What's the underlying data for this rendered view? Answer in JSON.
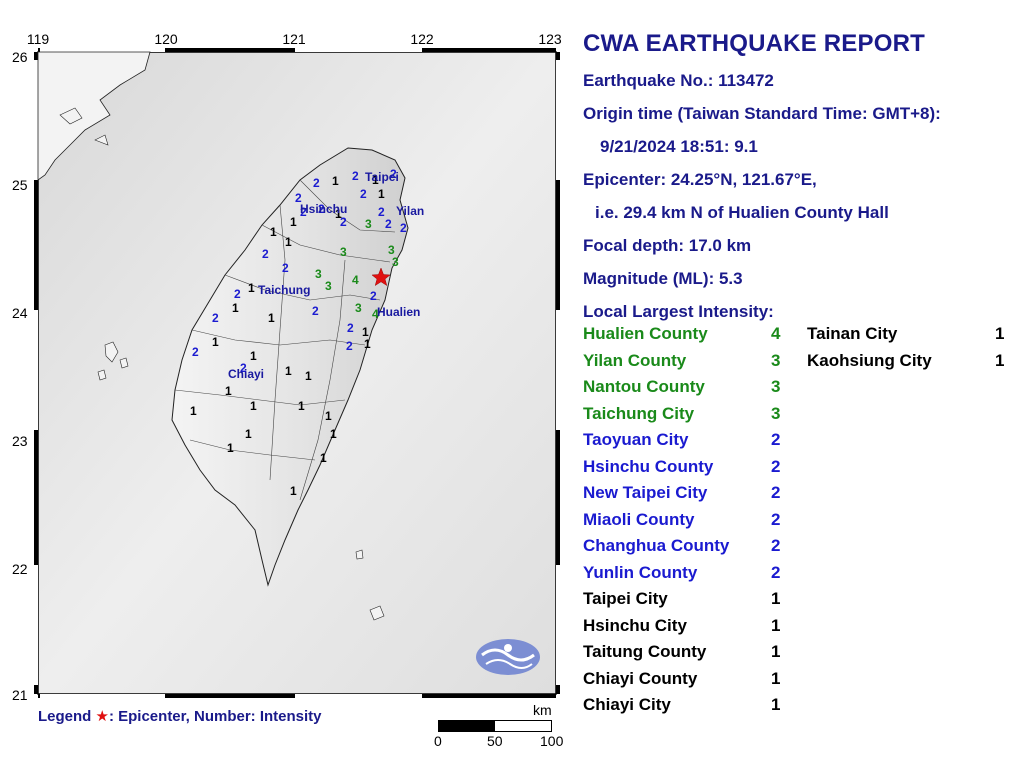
{
  "map": {
    "lon_ticks": [
      "119",
      "120",
      "121",
      "122",
      "123"
    ],
    "lat_ticks": [
      "26",
      "25",
      "24",
      "23",
      "22",
      "21"
    ],
    "cities": [
      {
        "name": "Taipei"
      },
      {
        "name": "Hsinchu"
      },
      {
        "name": "Yilan"
      },
      {
        "name": "Taichung"
      },
      {
        "name": "Hualien"
      },
      {
        "name": "Chiayi"
      }
    ],
    "intensity_marks": [
      {
        "v": "2",
        "c": "#1a1ad0"
      },
      {
        "v": "1",
        "c": "#000"
      },
      {
        "v": "2",
        "c": "#1a1ad0"
      },
      {
        "v": "1",
        "c": "#000"
      },
      {
        "v": "2",
        "c": "#1a1ad0"
      },
      {
        "v": "2",
        "c": "#1a1ad0"
      },
      {
        "v": "1",
        "c": "#000"
      },
      {
        "v": "2",
        "c": "#1a1ad0"
      },
      {
        "v": "2",
        "c": "#1a1ad0"
      },
      {
        "v": "2",
        "c": "#1a1ad0"
      },
      {
        "v": "1",
        "c": "#000"
      },
      {
        "v": "2",
        "c": "#1a1ad0"
      },
      {
        "v": "3",
        "c": "#1a8a1a"
      },
      {
        "v": "2",
        "c": "#1a1ad0"
      },
      {
        "v": "2",
        "c": "#1a1ad0"
      },
      {
        "v": "2",
        "c": "#1a1ad0"
      },
      {
        "v": "1",
        "c": "#000"
      },
      {
        "v": "1",
        "c": "#000"
      },
      {
        "v": "3",
        "c": "#1a8a1a"
      },
      {
        "v": "3",
        "c": "#1a8a1a"
      },
      {
        "v": "1",
        "c": "#000"
      },
      {
        "v": "2",
        "c": "#1a1ad0"
      },
      {
        "v": "3",
        "c": "#1a8a1a"
      },
      {
        "v": "3",
        "c": "#1a8a1a"
      },
      {
        "v": "4",
        "c": "#1a8a1a"
      },
      {
        "v": "3",
        "c": "#1a8a1a"
      },
      {
        "v": "2",
        "c": "#1a1ad0"
      },
      {
        "v": "1",
        "c": "#000"
      },
      {
        "v": "2",
        "c": "#1a1ad0"
      },
      {
        "v": "4",
        "c": "#1a8a1a"
      },
      {
        "v": "2",
        "c": "#1a1ad0"
      },
      {
        "v": "2",
        "c": "#1a1ad0"
      },
      {
        "v": "1",
        "c": "#000"
      },
      {
        "v": "3",
        "c": "#1a8a1a"
      },
      {
        "v": "2",
        "c": "#1a1ad0"
      },
      {
        "v": "1",
        "c": "#000"
      },
      {
        "v": "2",
        "c": "#1a1ad0"
      },
      {
        "v": "2",
        "c": "#1a1ad0"
      },
      {
        "v": "1",
        "c": "#000"
      },
      {
        "v": "1",
        "c": "#000"
      },
      {
        "v": "2",
        "c": "#1a1ad0"
      },
      {
        "v": "1",
        "c": "#000"
      },
      {
        "v": "1",
        "c": "#000"
      },
      {
        "v": "1",
        "c": "#000"
      },
      {
        "v": "1",
        "c": "#000"
      },
      {
        "v": "2",
        "c": "#1a1ad0"
      },
      {
        "v": "1",
        "c": "#000"
      },
      {
        "v": "1",
        "c": "#000"
      },
      {
        "v": "1",
        "c": "#000"
      },
      {
        "v": "1",
        "c": "#000"
      },
      {
        "v": "1",
        "c": "#000"
      },
      {
        "v": "1",
        "c": "#000"
      },
      {
        "v": "1",
        "c": "#000"
      },
      {
        "v": "1",
        "c": "#000"
      },
      {
        "v": "1",
        "c": "#000"
      },
      {
        "v": "1",
        "c": "#000"
      }
    ],
    "epicenter_color": "#e01010"
  },
  "legend": {
    "label": "Legend",
    "text": ": Epicenter, Number: Intensity"
  },
  "scale": {
    "unit": "km",
    "labels": [
      "0",
      "50",
      "100"
    ]
  },
  "report": {
    "title": "CWA EARTHQUAKE REPORT",
    "earthquake_no": "Earthquake No.: 113472",
    "origin_label": "Origin time (Taiwan Standard Time: GMT+8):",
    "origin_value": "9/21/2024 18:51: 9.1",
    "epicenter": "Epicenter: 24.25°N, 121.67°E,",
    "epicenter_desc": "i.e. 29.4 km N of Hualien County Hall",
    "depth": "Focal depth: 17.0 km",
    "magnitude": "Magnitude (ML): 5.3",
    "intensity_header": "Local Largest Intensity:"
  },
  "intensities_left": [
    {
      "name": "Hualien County",
      "value": "4",
      "color": "#1a8a1a"
    },
    {
      "name": "Yilan County",
      "value": "3",
      "color": "#1a8a1a"
    },
    {
      "name": "Nantou County",
      "value": "3",
      "color": "#1a8a1a"
    },
    {
      "name": "Taichung City",
      "value": "3",
      "color": "#1a8a1a"
    },
    {
      "name": "Taoyuan City",
      "value": "2",
      "color": "#1a1ad0"
    },
    {
      "name": "Hsinchu County",
      "value": "2",
      "color": "#1a1ad0"
    },
    {
      "name": "New Taipei City",
      "value": "2",
      "color": "#1a1ad0"
    },
    {
      "name": "Miaoli County",
      "value": "2",
      "color": "#1a1ad0"
    },
    {
      "name": "Changhua County",
      "value": "2",
      "color": "#1a1ad0"
    },
    {
      "name": "Yunlin County",
      "value": "2",
      "color": "#1a1ad0"
    },
    {
      "name": "Taipei City",
      "value": "1",
      "color": "#000000"
    },
    {
      "name": "Hsinchu City",
      "value": "1",
      "color": "#000000"
    },
    {
      "name": "Taitung County",
      "value": "1",
      "color": "#000000"
    },
    {
      "name": "Chiayi County",
      "value": "1",
      "color": "#000000"
    },
    {
      "name": "Chiayi City",
      "value": "1",
      "color": "#000000"
    }
  ],
  "intensities_right": [
    {
      "name": "Tainan City",
      "value": "1",
      "color": "#000000"
    },
    {
      "name": "Kaohsiung City",
      "value": "1",
      "color": "#000000"
    }
  ]
}
